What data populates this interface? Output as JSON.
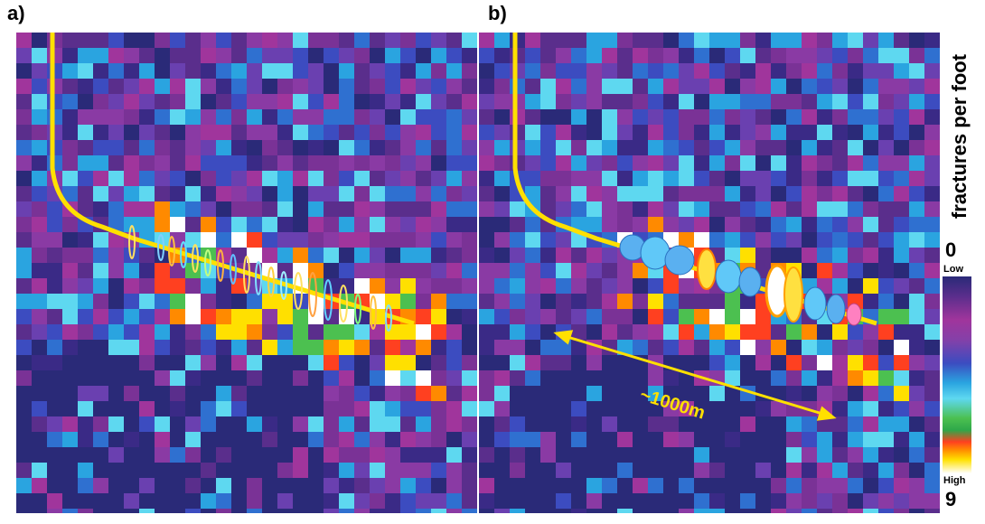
{
  "panels": {
    "a_label": "a)",
    "b_label": "b)"
  },
  "colorbar": {
    "title": "fractures per foot",
    "min_value": "0",
    "low_label": "Low",
    "high_label": "High",
    "max_value": "9",
    "colors": [
      "#2a2a78",
      "#a0359c",
      "#3c4cc0",
      "#5ed8f0",
      "#2ea84a",
      "#ff4020",
      "#ffe000",
      "#ffffff"
    ]
  },
  "annotation": {
    "distance_label": "~1000m",
    "arrow_color": "#ffe000"
  },
  "well_color": "#ffe000"
}
